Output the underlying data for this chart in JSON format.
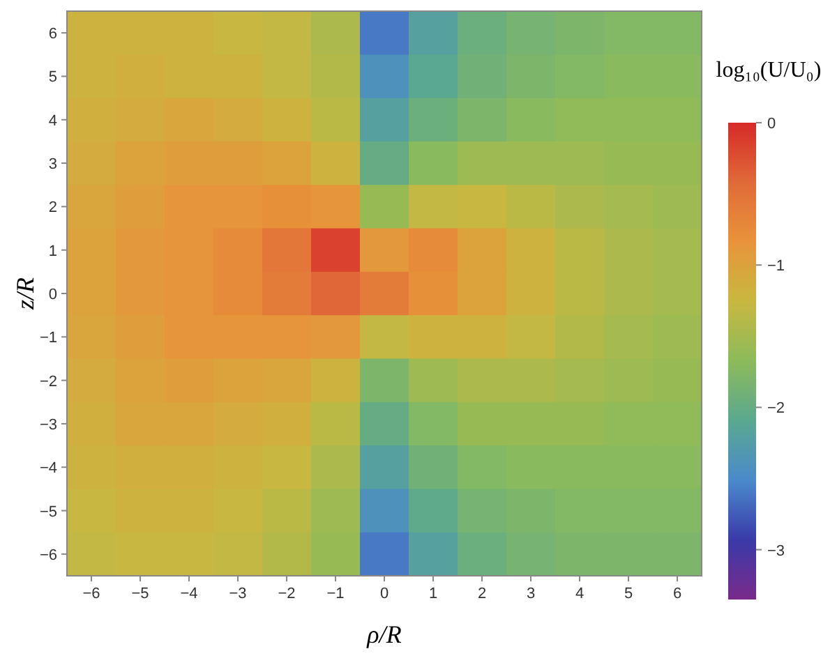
{
  "chart_data": {
    "type": "heatmap",
    "xlabel": "ρ/R",
    "ylabel": "z/R",
    "clabel": "log₁₀(U/U₀)",
    "categories": [
      "−6",
      "−5",
      "−4",
      "−3",
      "−2",
      "−1",
      "0",
      "1",
      "2",
      "3",
      "4",
      "5",
      "6"
    ],
    "y_categories": [
      "6",
      "5",
      "4",
      "3",
      "2",
      "1",
      "0",
      "−1",
      "−2",
      "−3",
      "−4",
      "−5",
      "−6"
    ],
    "clim": [
      -3.35,
      0
    ],
    "cticks": [
      -3,
      -2,
      -1,
      0
    ],
    "cells": [
      [
        -1.2,
        -1.2,
        -1.2,
        -1.25,
        -1.3,
        -1.45,
        -2.6,
        -2.2,
        -1.95,
        -1.85,
        -1.8,
        -1.75,
        -1.75
      ],
      [
        -1.2,
        -1.15,
        -1.2,
        -1.2,
        -1.3,
        -1.4,
        -2.4,
        -2.1,
        -1.9,
        -1.8,
        -1.75,
        -1.7,
        -1.7
      ],
      [
        -1.15,
        -1.1,
        -1.05,
        -1.1,
        -1.2,
        -1.35,
        -2.2,
        -1.95,
        -1.8,
        -1.7,
        -1.65,
        -1.65,
        -1.65
      ],
      [
        -1.1,
        -1.0,
        -0.95,
        -0.95,
        -1.0,
        -1.2,
        -2.0,
        -1.7,
        -1.55,
        -1.55,
        -1.55,
        -1.6,
        -1.6
      ],
      [
        -1.05,
        -0.95,
        -0.85,
        -0.85,
        -0.8,
        -0.85,
        -1.6,
        -1.3,
        -1.25,
        -1.35,
        -1.45,
        -1.5,
        -1.55
      ],
      [
        -1.0,
        -0.9,
        -0.85,
        -0.75,
        -0.55,
        -0.15,
        -0.9,
        -0.75,
        -1.0,
        -1.2,
        -1.35,
        -1.45,
        -1.5
      ],
      [
        -1.0,
        -0.9,
        -0.85,
        -0.75,
        -0.6,
        -0.4,
        -0.6,
        -0.8,
        -1.0,
        -1.2,
        -1.35,
        -1.45,
        -1.5
      ],
      [
        -1.05,
        -0.95,
        -0.85,
        -0.85,
        -0.85,
        -0.9,
        -1.3,
        -1.2,
        -1.2,
        -1.3,
        -1.4,
        -1.5,
        -1.55
      ],
      [
        -1.1,
        -1.0,
        -0.95,
        -1.0,
        -1.05,
        -1.2,
        -1.8,
        -1.55,
        -1.45,
        -1.45,
        -1.5,
        -1.55,
        -1.6
      ],
      [
        -1.15,
        -1.05,
        -1.05,
        -1.1,
        -1.15,
        -1.35,
        -2.0,
        -1.75,
        -1.6,
        -1.6,
        -1.6,
        -1.65,
        -1.65
      ],
      [
        -1.2,
        -1.15,
        -1.15,
        -1.2,
        -1.25,
        -1.45,
        -2.2,
        -1.9,
        -1.75,
        -1.7,
        -1.7,
        -1.7,
        -1.7
      ],
      [
        -1.25,
        -1.2,
        -1.2,
        -1.25,
        -1.35,
        -1.55,
        -2.4,
        -2.05,
        -1.85,
        -1.8,
        -1.75,
        -1.75,
        -1.75
      ],
      [
        -1.3,
        -1.25,
        -1.25,
        -1.3,
        -1.4,
        -1.6,
        -2.6,
        -2.2,
        -1.95,
        -1.85,
        -1.8,
        -1.8,
        -1.8
      ]
    ]
  }
}
